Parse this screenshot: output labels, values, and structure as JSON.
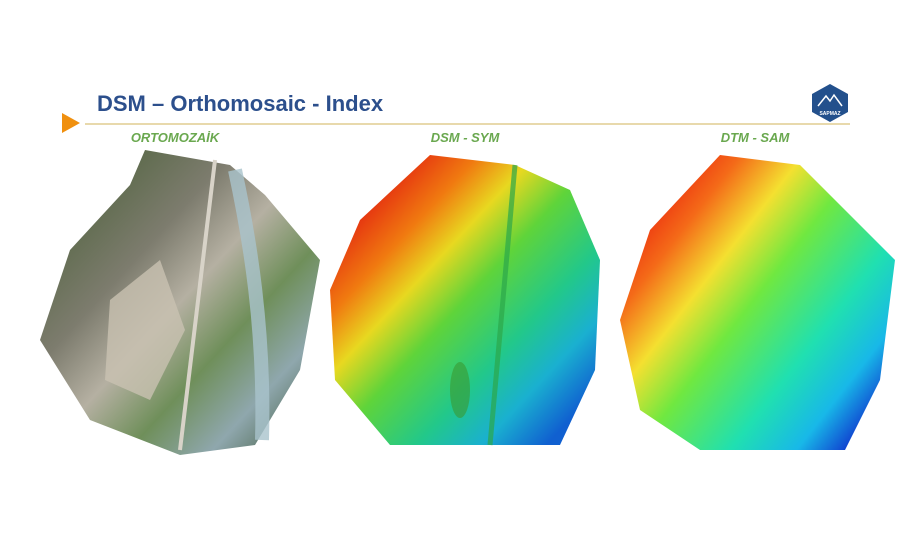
{
  "slide": {
    "title": "DSM – Orthomosaic - Index",
    "logo_text": "SAPMAZ",
    "panels": [
      {
        "label": "ORTOMOZAİK"
      },
      {
        "label": "DSM - SYM"
      },
      {
        "label": "DTM - SAM"
      }
    ]
  }
}
